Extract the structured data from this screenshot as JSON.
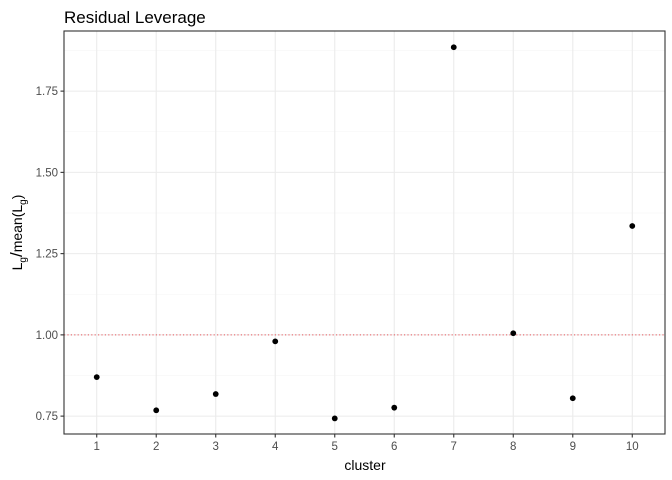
{
  "chart_data": {
    "type": "scatter",
    "title": "Residual Leverage",
    "xlabel": "cluster",
    "ylabel": {
      "parts": [
        {
          "text": "L",
          "role": "main"
        },
        {
          "text": "g",
          "role": "sub"
        },
        {
          "text": "/",
          "role": "slash"
        },
        {
          "text": "mean(L",
          "role": "main"
        },
        {
          "text": "g",
          "role": "sub"
        },
        {
          "text": ")",
          "role": "main"
        }
      ]
    },
    "x_categories": [
      "1",
      "2",
      "3",
      "4",
      "5",
      "6",
      "7",
      "8",
      "9",
      "10"
    ],
    "series": [
      {
        "x": [
          "1",
          "2",
          "3",
          "4",
          "5",
          "6",
          "7",
          "8",
          "9",
          "10"
        ],
        "values": [
          0.87,
          0.768,
          0.818,
          0.98,
          0.743,
          0.776,
          1.885,
          1.005,
          0.805,
          1.335
        ],
        "color": "#000000"
      }
    ],
    "ylim": [
      0.695,
      1.935
    ],
    "y_ticks": [
      0.75,
      1.0,
      1.25,
      1.5,
      1.75
    ],
    "y_tick_labels": [
      "0.75",
      "1.00",
      "1.25",
      "1.50",
      "1.75"
    ],
    "reference_line": {
      "y": 1.0,
      "color": "#e8575c",
      "style": "dotted"
    },
    "grid": true,
    "theme": {
      "panel_border": "#333333",
      "grid_major": "#ebebeb",
      "grid_minor": "#f4f4f4",
      "tick_color": "#333333",
      "point_color": "#000000"
    }
  }
}
